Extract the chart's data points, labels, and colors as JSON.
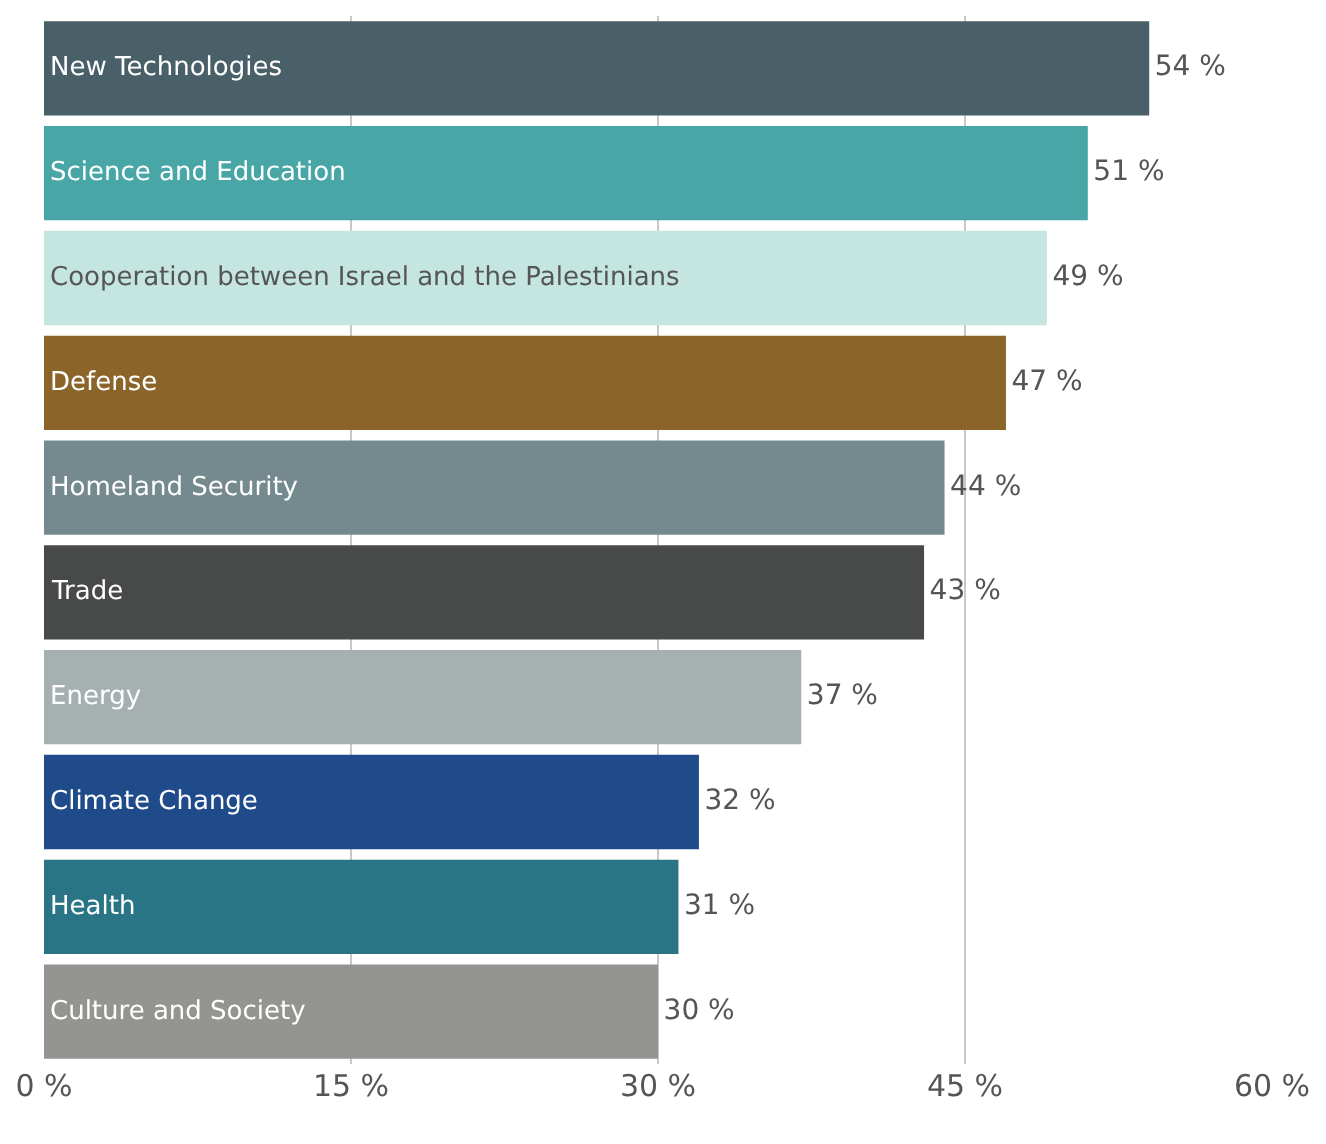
{
  "chart_data": {
    "type": "bar",
    "orientation": "horizontal",
    "categories": [
      "New Technologies",
      "Science and Education",
      "Cooperation between Israel and the Palestinians",
      "Defense",
      "Homeland Security",
      "Trade",
      "Energy",
      "Climate Change",
      "Health",
      "Culture and Society"
    ],
    "values": [
      54,
      51,
      49,
      47,
      44,
      43,
      37,
      32,
      31,
      30
    ],
    "value_labels": [
      "54 %",
      "51 %",
      "49 %",
      "47 %",
      "44 %",
      "43 %",
      "37 %",
      "32 %",
      "31 %",
      "30 %"
    ],
    "colors": [
      "#4a6069",
      "#48a6a6",
      "#c4e5e0",
      "#8a6428",
      "#758a8e",
      "#484a4a",
      "#a7b0b0",
      "#1f4b8a",
      "#2a7585",
      "#949590"
    ],
    "xlim": [
      0,
      60
    ],
    "xticks": [
      {
        "value": 0,
        "label": "0 %"
      },
      {
        "value": 15,
        "label": "15 %"
      },
      {
        "value": 30,
        "label": "30 %"
      },
      {
        "value": 45,
        "label": "45 %"
      },
      {
        "value": 60,
        "label": "60 %"
      }
    ],
    "grid": "x",
    "tick_labels": "x"
  }
}
